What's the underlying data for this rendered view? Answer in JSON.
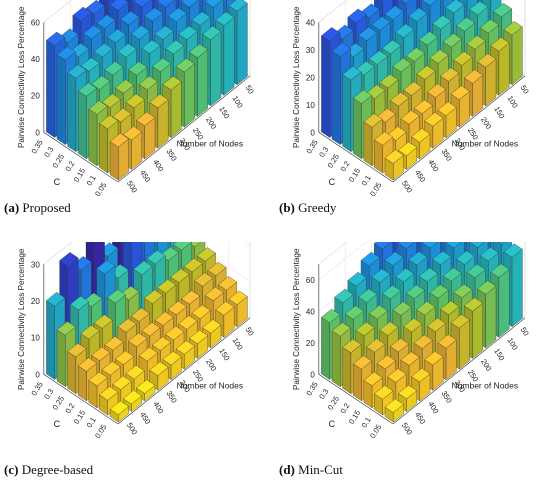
{
  "chart_data": [
    {
      "id": "a",
      "type": "bar3d",
      "caption_letter": "(a)",
      "caption_text": "Proposed",
      "zlabel": "Pairwise Connectivity Loss Percentage",
      "ylabel": "C",
      "xlabel": "Number of Nodes",
      "c_values": [
        "0.35",
        "0.3",
        "0.25",
        "0.2",
        "0.15",
        "0.1",
        "0.05"
      ],
      "node_values": [
        "500",
        "450",
        "400",
        "350",
        "300",
        "250",
        "200",
        "150",
        "100",
        "50"
      ],
      "zticks": [
        0,
        20,
        40,
        60
      ],
      "zlim": [
        0,
        60
      ],
      "values": [
        [
          50,
          46,
          52,
          50,
          54,
          58,
          60,
          62,
          64,
          66
        ],
        [
          46,
          42,
          46,
          46,
          50,
          54,
          56,
          58,
          60,
          62
        ],
        [
          40,
          38,
          40,
          42,
          46,
          50,
          52,
          54,
          56,
          58
        ],
        [
          34,
          32,
          34,
          38,
          42,
          46,
          48,
          50,
          52,
          54
        ],
        [
          28,
          26,
          28,
          32,
          38,
          40,
          44,
          46,
          48,
          50
        ],
        [
          24,
          22,
          24,
          28,
          32,
          36,
          38,
          40,
          44,
          46
        ],
        [
          18,
          16,
          18,
          22,
          26,
          30,
          32,
          36,
          38,
          40
        ]
      ]
    },
    {
      "id": "b",
      "type": "bar3d",
      "caption_letter": "(b)",
      "caption_text": "Greedy",
      "zlabel": "Pairwise Connectivity Loss Percentage",
      "ylabel": "C",
      "xlabel": "Number of Nodes",
      "c_values": [
        "0.35",
        "0.3",
        "0.25",
        "0.2",
        "0.15",
        "0.1",
        "0.05"
      ],
      "node_values": [
        "500",
        "450",
        "400",
        "350",
        "300",
        "250",
        "200",
        "150",
        "100",
        "50"
      ],
      "zticks": [
        0,
        10,
        20,
        30,
        40
      ],
      "zlim": [
        0,
        40
      ],
      "values": [
        [
          35,
          32,
          34,
          32,
          34,
          36,
          38,
          38,
          40,
          42
        ],
        [
          32,
          28,
          30,
          30,
          30,
          32,
          34,
          34,
          36,
          38
        ],
        [
          26,
          24,
          24,
          24,
          26,
          28,
          30,
          30,
          32,
          34
        ],
        [
          20,
          18,
          18,
          20,
          20,
          22,
          24,
          26,
          28,
          30
        ],
        [
          14,
          12,
          14,
          14,
          16,
          18,
          20,
          22,
          24,
          26
        ],
        [
          10,
          8,
          10,
          10,
          12,
          14,
          16,
          18,
          20,
          22
        ],
        [
          6,
          5,
          6,
          8,
          8,
          10,
          12,
          14,
          16,
          18
        ]
      ]
    },
    {
      "id": "c",
      "type": "bar3d",
      "caption_letter": "(c)",
      "caption_text": "Degree-based",
      "zlabel": "Pairwise Connectivity Loss Percentage",
      "ylabel": "C",
      "xlabel": "Number of Nodes",
      "c_values": [
        "0.35",
        "0.3",
        "0.25",
        "0.2",
        "0.15",
        "0.1",
        "0.05"
      ],
      "node_values": [
        "500",
        "450",
        "400",
        "350",
        "300",
        "250",
        "200",
        "150",
        "100",
        "50"
      ],
      "zticks": [
        0,
        10,
        20,
        30
      ],
      "zlim": [
        0,
        30
      ],
      "values": [
        [
          20,
          28,
          24,
          30,
          22,
          32,
          30,
          28,
          26,
          24
        ],
        [
          14,
          18,
          16,
          22,
          18,
          26,
          24,
          22,
          20,
          18
        ],
        [
          10,
          12,
          12,
          16,
          14,
          18,
          18,
          16,
          16,
          14
        ],
        [
          8,
          8,
          8,
          10,
          10,
          12,
          12,
          12,
          12,
          12
        ],
        [
          6,
          6,
          6,
          8,
          8,
          8,
          8,
          8,
          10,
          10
        ],
        [
          4,
          4,
          4,
          6,
          6,
          6,
          6,
          6,
          8,
          8
        ],
        [
          2,
          2,
          2,
          4,
          4,
          4,
          4,
          4,
          6,
          6
        ]
      ]
    },
    {
      "id": "d",
      "type": "bar3d",
      "caption_letter": "(d)",
      "caption_text": "Min-Cut",
      "zlabel": "Pairwise Connectivity Loss Percentage",
      "ylabel": "C",
      "xlabel": "Number of Nodes",
      "c_values": [
        "0.35",
        "0.3",
        "0.25",
        "0.2",
        "0.15",
        "0.1",
        "0.05"
      ],
      "node_values": [
        "500",
        "450",
        "400",
        "350",
        "300",
        "250",
        "200",
        "150",
        "100",
        "50"
      ],
      "zticks": [
        0,
        20,
        40,
        60
      ],
      "zlim": [
        0,
        70
      ],
      "values": [
        [
          36,
          42,
          46,
          52,
          56,
          60,
          62,
          64,
          66,
          68
        ],
        [
          32,
          36,
          40,
          46,
          50,
          54,
          58,
          60,
          62,
          64
        ],
        [
          26,
          30,
          34,
          40,
          44,
          48,
          52,
          56,
          58,
          60
        ],
        [
          20,
          24,
          28,
          34,
          38,
          42,
          46,
          50,
          54,
          56
        ],
        [
          14,
          18,
          22,
          28,
          32,
          36,
          40,
          44,
          48,
          52
        ],
        [
          10,
          14,
          18,
          22,
          26,
          30,
          34,
          40,
          44,
          48
        ],
        [
          6,
          8,
          12,
          16,
          20,
          26,
          30,
          34,
          38,
          44
        ]
      ]
    }
  ]
}
